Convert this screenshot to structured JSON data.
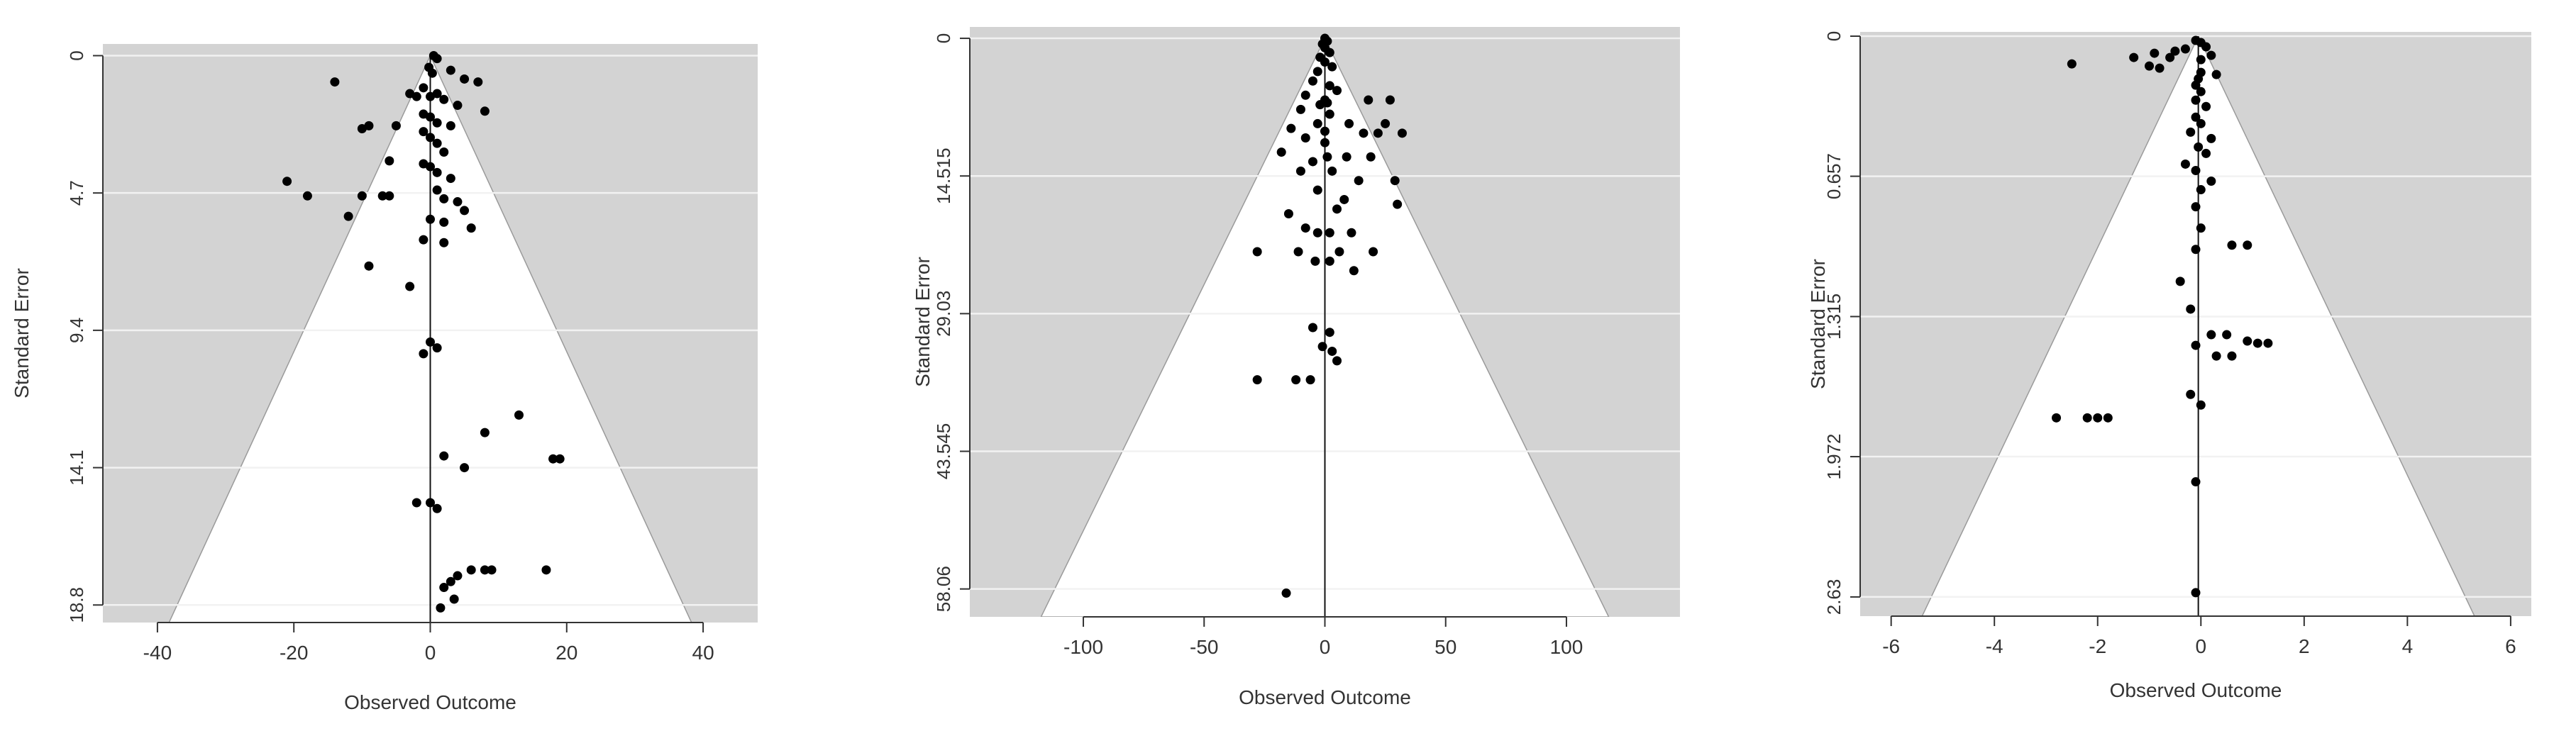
{
  "colors": {
    "panel_bg": "#d3d3d3",
    "funnel_fill": "#ffffff",
    "gridline": "#f2f2f2",
    "points": "#000000",
    "axis": "#333333",
    "text": "#333333"
  },
  "chart_data": [
    {
      "type": "scatter",
      "subtype": "funnel-plot",
      "title": "",
      "xlabel": "Observed Outcome",
      "ylabel": "Standard Error",
      "xlim": [
        -48,
        48
      ],
      "ylim": [
        19.4,
        -0.4
      ],
      "y_reversed": true,
      "grid": true,
      "xticks": [
        -40,
        -20,
        0,
        20,
        40
      ],
      "xtick_labels": [
        "-40",
        "-20",
        "0",
        "20",
        "40"
      ],
      "yticks": [
        0,
        4.7,
        9.4,
        14.1,
        18.8
      ],
      "ytick_labels": [
        "0",
        "4.7",
        "9.4",
        "14.1",
        "18.8"
      ],
      "center": 0,
      "funnel_base_halfwidth": 38.3,
      "funnel_base_se": 19.4,
      "points": [
        [
          0.5,
          0
        ],
        [
          1,
          0.1
        ],
        [
          -0.2,
          0.4
        ],
        [
          0.3,
          0.6
        ],
        [
          3,
          0.5
        ],
        [
          5,
          0.8
        ],
        [
          7,
          0.9
        ],
        [
          -14,
          0.9
        ],
        [
          -1,
          1.1
        ],
        [
          1,
          1.3
        ],
        [
          -3,
          1.3
        ],
        [
          0,
          1.4
        ],
        [
          -2,
          1.4
        ],
        [
          2,
          1.5
        ],
        [
          4,
          1.7
        ],
        [
          8,
          1.9
        ],
        [
          -1,
          2.0
        ],
        [
          0,
          2.1
        ],
        [
          1,
          2.3
        ],
        [
          3,
          2.4
        ],
        [
          -5,
          2.4
        ],
        [
          -9,
          2.4
        ],
        [
          -10,
          2.5
        ],
        [
          -1,
          2.6
        ],
        [
          0,
          2.8
        ],
        [
          1,
          3.0
        ],
        [
          2,
          3.3
        ],
        [
          -6,
          3.6
        ],
        [
          -1,
          3.7
        ],
        [
          0,
          3.8
        ],
        [
          1,
          4.0
        ],
        [
          3,
          4.2
        ],
        [
          -21,
          4.3
        ],
        [
          -18,
          4.8
        ],
        [
          -10,
          4.8
        ],
        [
          -7,
          4.8
        ],
        [
          -6,
          4.8
        ],
        [
          1,
          4.6
        ],
        [
          2,
          4.9
        ],
        [
          4,
          5.0
        ],
        [
          5,
          5.3
        ],
        [
          -12,
          5.5
        ],
        [
          0,
          5.6
        ],
        [
          2,
          5.7
        ],
        [
          6,
          5.9
        ],
        [
          -1,
          6.3
        ],
        [
          2,
          6.4
        ],
        [
          -9,
          7.2
        ],
        [
          -3,
          7.9
        ],
        [
          0,
          9.8
        ],
        [
          1,
          10.0
        ],
        [
          -1,
          10.2
        ],
        [
          13,
          12.3
        ],
        [
          8,
          12.9
        ],
        [
          2,
          13.7
        ],
        [
          18,
          13.8
        ],
        [
          19,
          13.8
        ],
        [
          5,
          14.1
        ],
        [
          -2,
          15.3
        ],
        [
          0,
          15.3
        ],
        [
          1,
          15.5
        ],
        [
          6,
          17.6
        ],
        [
          8,
          17.6
        ],
        [
          9,
          17.6
        ],
        [
          17,
          17.6
        ],
        [
          4,
          17.8
        ],
        [
          3,
          18.0
        ],
        [
          2,
          18.2
        ],
        [
          3.5,
          18.6
        ],
        [
          1.5,
          18.9
        ]
      ]
    },
    {
      "type": "scatter",
      "subtype": "funnel-plot",
      "title": "",
      "xlabel": "Observed Outcome",
      "ylabel": "Standard Error",
      "xlim": [
        -147,
        147
      ],
      "ylim": [
        61,
        -1.2
      ],
      "y_reversed": true,
      "grid": true,
      "xticks": [
        -100,
        -50,
        0,
        50,
        100
      ],
      "xtick_labels": [
        "-100",
        "-50",
        "0",
        "50",
        "100"
      ],
      "yticks": [
        0,
        14.515,
        29.03,
        43.545,
        58.06
      ],
      "ytick_labels": [
        "0",
        "14.515",
        "29.03",
        "43.545",
        "58.06"
      ],
      "center": 0,
      "funnel_base_halfwidth": 117.5,
      "funnel_base_se": 61,
      "points": [
        [
          0,
          0
        ],
        [
          1,
          0.3
        ],
        [
          -1,
          0.6
        ],
        [
          0,
          1
        ],
        [
          2,
          1.5
        ],
        [
          -2,
          2
        ],
        [
          0,
          2.5
        ],
        [
          3,
          3
        ],
        [
          -3,
          3.5
        ],
        [
          -5,
          4.5
        ],
        [
          2,
          5
        ],
        [
          5,
          5.5
        ],
        [
          -8,
          6
        ],
        [
          0,
          6.5
        ],
        [
          1,
          6.8
        ],
        [
          -2,
          7
        ],
        [
          18,
          6.5
        ],
        [
          27,
          6.5
        ],
        [
          -10,
          7.5
        ],
        [
          2,
          8
        ],
        [
          -3,
          9
        ],
        [
          10,
          9
        ],
        [
          25,
          9
        ],
        [
          -14,
          9.5
        ],
        [
          0,
          9.8
        ],
        [
          16,
          10
        ],
        [
          22,
          10
        ],
        [
          32,
          10
        ],
        [
          -8,
          10.5
        ],
        [
          0,
          11
        ],
        [
          -18,
          12
        ],
        [
          -5,
          13
        ],
        [
          1,
          12.5
        ],
        [
          9,
          12.5
        ],
        [
          19,
          12.5
        ],
        [
          -10,
          14
        ],
        [
          3,
          14
        ],
        [
          14,
          15
        ],
        [
          29,
          15
        ],
        [
          -3,
          16
        ],
        [
          8,
          17
        ],
        [
          30,
          17.5
        ],
        [
          -15,
          18.5
        ],
        [
          5,
          18
        ],
        [
          -8,
          20
        ],
        [
          -3,
          20.5
        ],
        [
          2,
          20.5
        ],
        [
          11,
          20.5
        ],
        [
          -28,
          22.5
        ],
        [
          -11,
          22.5
        ],
        [
          6,
          22.5
        ],
        [
          -4,
          23.5
        ],
        [
          2,
          23.5
        ],
        [
          12,
          24.5
        ],
        [
          20,
          22.5
        ],
        [
          -5,
          30.5
        ],
        [
          2,
          31
        ],
        [
          -1,
          32.5
        ],
        [
          3,
          33
        ],
        [
          5,
          34
        ],
        [
          -28,
          36
        ],
        [
          -12,
          36
        ],
        [
          -6,
          36
        ],
        [
          -16,
          58.5
        ]
      ]
    },
    {
      "type": "scatter",
      "subtype": "funnel-plot",
      "title": "",
      "xlabel": "Observed Outcome",
      "ylabel": "Standard Error",
      "xlim": [
        -6.6,
        6.4
      ],
      "ylim": [
        2.72,
        -0.02
      ],
      "y_reversed": true,
      "grid": true,
      "xticks": [
        -6,
        -4,
        -2,
        0,
        2,
        4,
        6
      ],
      "xtick_labels": [
        "-6",
        "-4",
        "-2",
        "0",
        "2",
        "4",
        "6"
      ],
      "yticks": [
        0,
        0.657,
        1.315,
        1.972,
        2.63
      ],
      "ytick_labels": [
        "0",
        "0.657",
        "1.315",
        "1.972",
        "2.63"
      ],
      "center": -0.05,
      "funnel_base_halfwidth": 5.35,
      "funnel_base_se": 2.72,
      "points": [
        [
          -0.1,
          0.02
        ],
        [
          0,
          0.03
        ],
        [
          0.1,
          0.05
        ],
        [
          -0.3,
          0.06
        ],
        [
          -0.5,
          0.07
        ],
        [
          -0.9,
          0.08
        ],
        [
          0.2,
          0.09
        ],
        [
          -1.3,
          0.1
        ],
        [
          -0.6,
          0.1
        ],
        [
          0,
          0.11
        ],
        [
          -2.5,
          0.13
        ],
        [
          -1.0,
          0.14
        ],
        [
          -0.8,
          0.15
        ],
        [
          0,
          0.17
        ],
        [
          0.3,
          0.18
        ],
        [
          -0.05,
          0.2
        ],
        [
          -0.1,
          0.23
        ],
        [
          0,
          0.26
        ],
        [
          -0.1,
          0.3
        ],
        [
          0.1,
          0.33
        ],
        [
          -0.1,
          0.38
        ],
        [
          0,
          0.41
        ],
        [
          -0.2,
          0.45
        ],
        [
          0.2,
          0.48
        ],
        [
          -0.05,
          0.52
        ],
        [
          0.1,
          0.55
        ],
        [
          -0.3,
          0.6
        ],
        [
          -0.1,
          0.63
        ],
        [
          0.2,
          0.68
        ],
        [
          0,
          0.72
        ],
        [
          -0.1,
          0.8
        ],
        [
          0,
          0.9
        ],
        [
          -0.1,
          1.0
        ],
        [
          0.6,
          0.98
        ],
        [
          0.9,
          0.98
        ],
        [
          -0.4,
          1.15
        ],
        [
          -0.2,
          1.28
        ],
        [
          0.2,
          1.4
        ],
        [
          0.5,
          1.4
        ],
        [
          0.9,
          1.43
        ],
        [
          1.1,
          1.44
        ],
        [
          1.3,
          1.44
        ],
        [
          -0.1,
          1.45
        ],
        [
          0.3,
          1.5
        ],
        [
          0.6,
          1.5
        ],
        [
          -0.2,
          1.68
        ],
        [
          0,
          1.73
        ],
        [
          -2.8,
          1.79
        ],
        [
          -2.2,
          1.79
        ],
        [
          -2.0,
          1.79
        ],
        [
          -1.8,
          1.79
        ],
        [
          -0.1,
          2.09
        ],
        [
          -0.1,
          2.61
        ]
      ]
    }
  ]
}
